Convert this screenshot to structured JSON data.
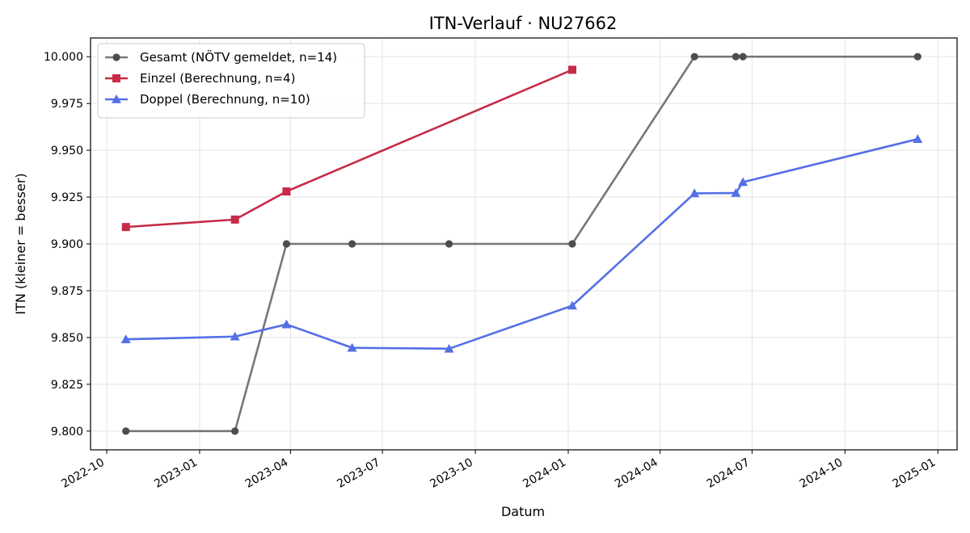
{
  "chart_data": {
    "type": "line",
    "title": "ITN-Verlauf · NU27662",
    "xlabel": "Datum",
    "ylabel": "ITN  (kleiner = besser)",
    "xlim": [
      "2022-09-15",
      "2025-01-20"
    ],
    "ylim": [
      9.79,
      10.01
    ],
    "x_ticks": [
      {
        "date": "2022-10-01",
        "label": "2022-10"
      },
      {
        "date": "2023-01-01",
        "label": "2023-01"
      },
      {
        "date": "2023-04-01",
        "label": "2023-04"
      },
      {
        "date": "2023-07-01",
        "label": "2023-07"
      },
      {
        "date": "2023-10-01",
        "label": "2023-10"
      },
      {
        "date": "2024-01-01",
        "label": "2024-01"
      },
      {
        "date": "2024-04-01",
        "label": "2024-04"
      },
      {
        "date": "2024-07-01",
        "label": "2024-07"
      },
      {
        "date": "2024-10-01",
        "label": "2024-10"
      },
      {
        "date": "2025-01-01",
        "label": "2025-01"
      }
    ],
    "y_ticks": [
      {
        "value": 9.8,
        "label": "9.800"
      },
      {
        "value": 9.825,
        "label": "9.825"
      },
      {
        "value": 9.85,
        "label": "9.850"
      },
      {
        "value": 9.875,
        "label": "9.875"
      },
      {
        "value": 9.9,
        "label": "9.900"
      },
      {
        "value": 9.925,
        "label": "9.925"
      },
      {
        "value": 9.95,
        "label": "9.950"
      },
      {
        "value": 9.975,
        "label": "9.975"
      },
      {
        "value": 10.0,
        "label": "10.000"
      }
    ],
    "grid": true,
    "legend_position": "top-left",
    "series": [
      {
        "name": "Gesamt (NÖTV gemeldet, n=14)",
        "color": "#777777",
        "marker_color": "#4d4d4d",
        "marker": "circle",
        "points": [
          {
            "x": "2022-10-20",
            "y": 9.8
          },
          {
            "x": "2023-02-05",
            "y": 9.8
          },
          {
            "x": "2023-03-28",
            "y": 9.9
          },
          {
            "x": "2023-06-01",
            "y": 9.9
          },
          {
            "x": "2023-09-05",
            "y": 9.9
          },
          {
            "x": "2024-01-05",
            "y": 9.9
          },
          {
            "x": "2024-05-05",
            "y": 10.0
          },
          {
            "x": "2024-06-15",
            "y": 10.0
          },
          {
            "x": "2024-06-22",
            "y": 10.0
          },
          {
            "x": "2024-12-12",
            "y": 10.0
          }
        ]
      },
      {
        "name": "Einzel (Berechnung, n=4)",
        "color": "#c62a47",
        "marker_color": "#c62a47",
        "marker": "square",
        "points": [
          {
            "x": "2022-10-20",
            "y": 9.909
          },
          {
            "x": "2023-02-05",
            "y": 9.913
          },
          {
            "x": "2023-03-28",
            "y": 9.928
          },
          {
            "x": "2024-01-05",
            "y": 9.993
          }
        ]
      },
      {
        "name": "Doppel (Berechnung, n=10)",
        "color": "#5470e6",
        "marker_color": "#5470e6",
        "marker": "triangle",
        "points": [
          {
            "x": "2022-10-20",
            "y": 9.849
          },
          {
            "x": "2023-02-05",
            "y": 9.8505
          },
          {
            "x": "2023-03-28",
            "y": 9.857
          },
          {
            "x": "2023-06-01",
            "y": 9.8445
          },
          {
            "x": "2023-09-05",
            "y": 9.844
          },
          {
            "x": "2024-01-05",
            "y": 9.867
          },
          {
            "x": "2024-05-05",
            "y": 9.927
          },
          {
            "x": "2024-06-15",
            "y": 9.9272
          },
          {
            "x": "2024-06-22",
            "y": 9.933
          },
          {
            "x": "2024-12-12",
            "y": 9.956
          }
        ]
      }
    ]
  }
}
